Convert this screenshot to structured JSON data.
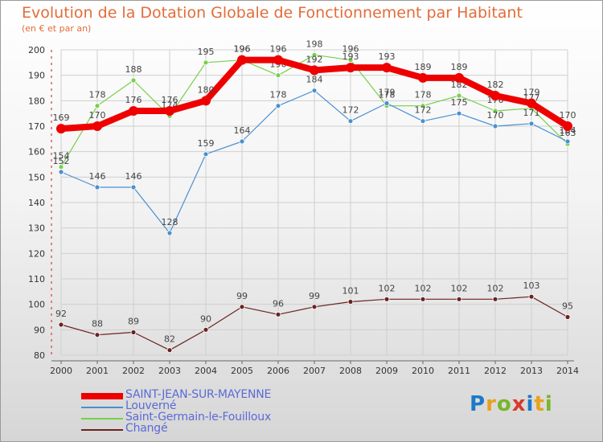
{
  "title": "Evolution de la Dotation Globale de Fonctionnement par Habitant",
  "subtitle": "(en € et par an)",
  "logo": "Proxiti",
  "chart_data": {
    "type": "line",
    "title": "Evolution de la Dotation Globale de Fonctionnement par Habitant",
    "subtitle": "(en € et par an)",
    "xlabel": "",
    "ylabel": "",
    "x": [
      "2000",
      "2001",
      "2002",
      "2003",
      "2004",
      "2005",
      "2006",
      "2007",
      "2008",
      "2009",
      "2010",
      "2011",
      "2012",
      "2013",
      "2014"
    ],
    "ylim": [
      80,
      200
    ],
    "yticks": [
      80,
      90,
      100,
      110,
      120,
      130,
      140,
      150,
      160,
      170,
      180,
      190,
      200
    ],
    "grid": true,
    "legend_position": "bottom-left",
    "series": [
      {
        "name": "SAINT-JEAN-SUR-MAYENNE",
        "color": "#ee0000",
        "values": [
          169,
          170,
          176,
          176,
          180,
          196,
          196,
          192,
          193,
          193,
          189,
          189,
          182,
          179,
          170
        ]
      },
      {
        "name": "Louverné",
        "color": "#4a90d0",
        "values": [
          152,
          146,
          146,
          128,
          159,
          164,
          178,
          184,
          172,
          179,
          172,
          175,
          170,
          171,
          164
        ]
      },
      {
        "name": "Saint-Germain-le-Fouilloux",
        "color": "#77d04a",
        "values": [
          154,
          178,
          188,
          174,
          195,
          196,
          190,
          198,
          196,
          178,
          178,
          182,
          176,
          177,
          163
        ]
      },
      {
        "name": "Changé",
        "color": "#6b2222",
        "values": [
          92,
          88,
          89,
          82,
          90,
          99,
          96,
          99,
          101,
          102,
          102,
          102,
          102,
          103,
          95
        ]
      }
    ]
  }
}
